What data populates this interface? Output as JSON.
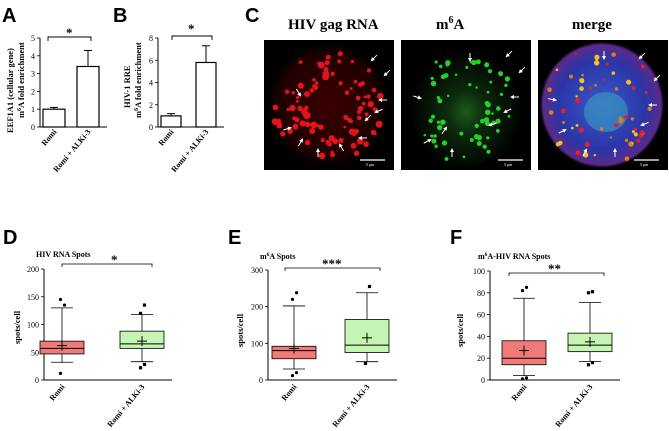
{
  "panels": {
    "A": {
      "letter": "A",
      "ylabel_line1": "EEF1A1 (cellular gene)",
      "ylabel_line2": "m6A fold enrichment",
      "significance": "*",
      "chart_data": {
        "type": "bar",
        "categories": [
          "Romi",
          "Romi + ALKi-3"
        ],
        "values": [
          1.0,
          3.4
        ],
        "errors": [
          0.1,
          0.9
        ],
        "ylim": [
          0,
          5
        ],
        "yticks": [
          "0",
          "1",
          "2",
          "3",
          "4",
          "5"
        ]
      }
    },
    "B": {
      "letter": "B",
      "ylabel_line1": "HIV-1 RRE",
      "ylabel_line2": "m6A fold enrichment",
      "significance": "*",
      "chart_data": {
        "type": "bar",
        "categories": [
          "Romi",
          "Romi + ALKi-3"
        ],
        "values": [
          1.0,
          5.8
        ],
        "errors": [
          0.2,
          1.5
        ],
        "ylim": [
          0,
          8
        ],
        "yticks": [
          "0",
          "2",
          "4",
          "6",
          "8"
        ]
      }
    },
    "C": {
      "letter": "C",
      "images": [
        {
          "title": "HIV gag RNA",
          "scale_label": "5 μm"
        },
        {
          "title": "m6A",
          "scale_label": "5 μm"
        },
        {
          "title": "merge",
          "scale_label": "5 μm"
        }
      ]
    },
    "D": {
      "letter": "D",
      "title": "HIV RNA Spots",
      "ylabel": "spots/cell",
      "significance": "*",
      "chart_data": {
        "type": "box",
        "categories": [
          "Romi",
          "Romi + ALKi-3"
        ],
        "ylim": [
          0,
          200
        ],
        "yticks": [
          "0",
          "50",
          "100",
          "150",
          "200"
        ],
        "boxes": [
          {
            "whisker_low": 32,
            "q1": 47,
            "median": 57,
            "q3": 70,
            "whisker_high": 130,
            "mean": 62,
            "outliers": [
              12,
              135,
              145
            ]
          },
          {
            "whisker_low": 33,
            "q1": 57,
            "median": 65,
            "q3": 88,
            "whisker_high": 118,
            "mean": 70,
            "outliers": [
              22,
              28,
              120,
              135
            ]
          }
        ]
      }
    },
    "E": {
      "letter": "E",
      "title": "m6A Spots",
      "ylabel": "spots/cell",
      "significance": "***",
      "chart_data": {
        "type": "box",
        "categories": [
          "Romi",
          "Romi + ALKi-3"
        ],
        "ylim": [
          0,
          300
        ],
        "yticks": [
          "0",
          "100",
          "200",
          "300"
        ],
        "boxes": [
          {
            "whisker_low": 30,
            "q1": 58,
            "median": 80,
            "q3": 92,
            "whisker_high": 202,
            "mean": 86,
            "outliers": [
              12,
              20,
              220,
              238
            ]
          },
          {
            "whisker_low": 50,
            "q1": 75,
            "median": 95,
            "q3": 165,
            "whisker_high": 238,
            "mean": 115,
            "outliers": [
              45,
              255
            ]
          }
        ]
      }
    },
    "F": {
      "letter": "F",
      "title": "m6A-HIV RNA Spots",
      "ylabel": "spots/cell",
      "significance": "**",
      "chart_data": {
        "type": "box",
        "categories": [
          "Romi",
          "Romi + ALKi-3"
        ],
        "ylim": [
          0,
          100
        ],
        "yticks": [
          "0",
          "20",
          "40",
          "60",
          "80",
          "100"
        ],
        "boxes": [
          {
            "whisker_low": 4,
            "q1": 14,
            "median": 20,
            "q3": 36,
            "whisker_high": 75,
            "mean": 27,
            "outliers": [
              1,
              2,
              82,
              85
            ]
          },
          {
            "whisker_low": 17,
            "q1": 26,
            "median": 32,
            "q3": 43,
            "whisker_high": 71,
            "mean": 35,
            "outliers": [
              14,
              16,
              80,
              81
            ]
          }
        ]
      }
    }
  },
  "colors": {
    "romi_box": "#f07a7a",
    "alki_box": "#c4f5b2",
    "bar_fill": "#ffffff"
  }
}
